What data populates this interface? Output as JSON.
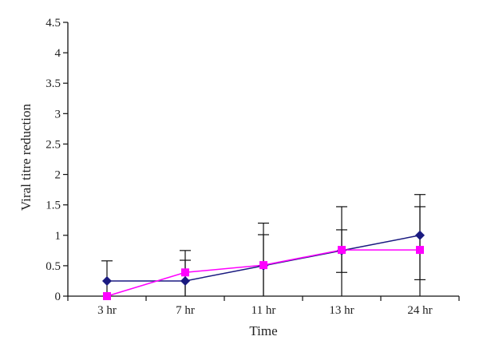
{
  "chart_data": {
    "type": "line",
    "title": "",
    "xlabel": "Time",
    "ylabel": "Viral titre reduction",
    "categories": [
      "3 hr",
      "7 hr",
      "11 hr",
      "13 hr",
      "24 hr"
    ],
    "ylim": [
      0,
      4.5
    ],
    "yticks": [
      0,
      0.5,
      1,
      1.5,
      2,
      2.5,
      3,
      3.5,
      4,
      4.5
    ],
    "ytick_labels": [
      "0",
      "0.5",
      "1",
      "1.5",
      "2",
      "2.5",
      "3",
      "3.5",
      "4",
      "4.5"
    ],
    "grid": false,
    "legend": "none",
    "series": [
      {
        "marker": "diamond",
        "color": "#1a1a80",
        "values": [
          0.25,
          0.25,
          0.5,
          0.75,
          1.0
        ],
        "error_upper": [
          0.58,
          0.59,
          1.01,
          1.09,
          1.47
        ],
        "error_lower": [
          0.0,
          0.0,
          0.0,
          0.39,
          0.27
        ]
      },
      {
        "marker": "square",
        "color": "#ff00ff",
        "values": [
          0.0,
          0.39,
          0.51,
          0.76,
          0.76
        ],
        "error_upper": [
          0.0,
          0.75,
          1.2,
          1.47,
          1.67
        ],
        "error_lower": [
          0.0,
          0.0,
          0.0,
          0.0,
          0.0
        ]
      }
    ]
  }
}
